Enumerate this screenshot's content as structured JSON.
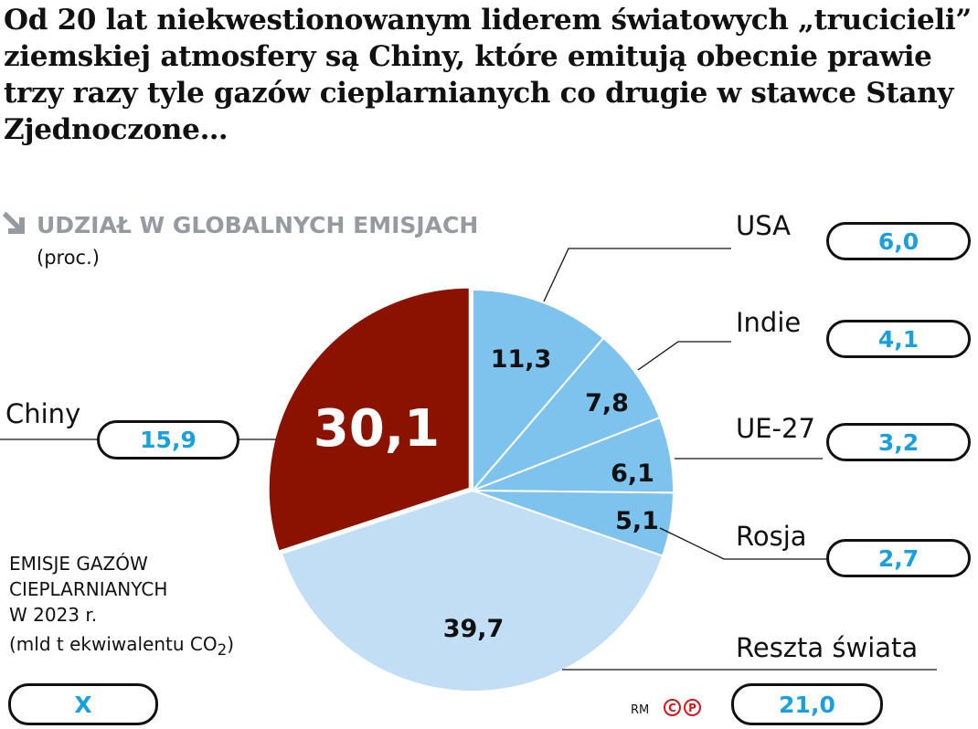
{
  "title": "Od 20 lat niekwestionowanym liderem światowych „trucicieli” ziemskiej atmosfery są Chiny, które emitują obecnie prawie trzy razy tyle gazów cieplarnianych co drugie w stawce Stany Zjednoczone…",
  "subtitle": "UDZIAŁ W GLOBALNYCH EMISJACH",
  "unit": "(proc.)",
  "icon": "arrow-down-right-icon",
  "note": {
    "line1": "EMISJE GAZÓW",
    "line2": "CIEPLARNIANYCH",
    "line3": "W 2023 r.",
    "line4": "(mld t ekwiwalentu CO",
    "sub": "2",
    "close": ")"
  },
  "total_value": "X",
  "credit": "RM",
  "copyright_marks": [
    "C",
    "P"
  ],
  "colors": {
    "china": "#8c1200",
    "major": "#7dc3ee",
    "rest": "#c2def5",
    "value_text": "#1ba0dc"
  },
  "chart_data": {
    "type": "pie",
    "start": "top, clockwise",
    "slices": [
      {
        "name": "USA",
        "share": 11.3,
        "share_label": "11,3",
        "emissions": "6,0"
      },
      {
        "name": "Indie",
        "share": 7.8,
        "share_label": "7,8",
        "emissions": "4,1"
      },
      {
        "name": "UE-27",
        "share": 6.1,
        "share_label": "6,1",
        "emissions": "3,2"
      },
      {
        "name": "Rosja",
        "share": 5.1,
        "share_label": "5,1",
        "emissions": "2,7"
      },
      {
        "name": "Reszta świata",
        "share": 39.7,
        "share_label": "39,7",
        "emissions": "21,0"
      },
      {
        "name": "Chiny",
        "share": 30.1,
        "share_label": "30,1",
        "emissions": "15,9"
      }
    ]
  }
}
